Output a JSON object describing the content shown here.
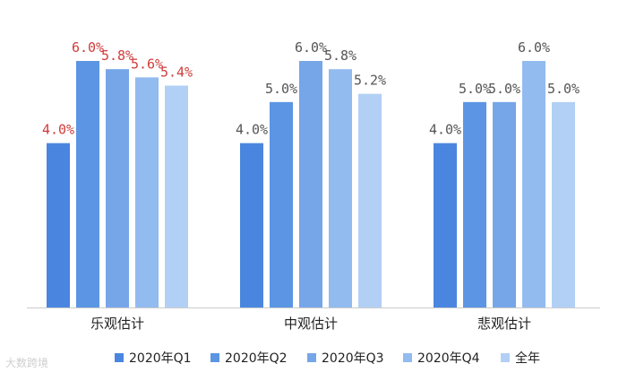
{
  "chart_data": {
    "type": "bar",
    "categories": [
      "乐观估计",
      "中观估计",
      "悲观估计"
    ],
    "series": [
      {
        "name": "2020年Q1",
        "color": "#4a86df",
        "values": [
          4.0,
          4.0,
          4.0
        ],
        "labels": [
          "4.0%",
          "4.0%",
          "4.0%"
        ]
      },
      {
        "name": "2020年Q2",
        "color": "#5b95e4",
        "values": [
          6.0,
          5.0,
          5.0
        ],
        "labels": [
          "6.0%",
          "5.0%",
          "5.0%"
        ]
      },
      {
        "name": "2020年Q3",
        "color": "#76a6e8",
        "values": [
          5.8,
          6.0,
          5.0
        ],
        "labels": [
          "5.8%",
          "6.0%",
          "5.0%"
        ]
      },
      {
        "name": "2020年Q4",
        "color": "#92bbef",
        "values": [
          5.6,
          5.8,
          6.0
        ],
        "labels": [
          "5.6%",
          "5.8%",
          "6.0%"
        ]
      },
      {
        "name": "全年",
        "color": "#b2d0f5",
        "values": [
          5.4,
          5.2,
          5.0
        ],
        "labels": [
          "5.4%",
          "5.2%",
          "5.0%"
        ]
      }
    ],
    "label_colors": [
      "#d13b3b",
      "#555555",
      "#555555"
    ],
    "ylim": [
      0,
      6.8
    ],
    "grid": false,
    "legend_position": "bottom"
  },
  "watermark": "大数跨境"
}
